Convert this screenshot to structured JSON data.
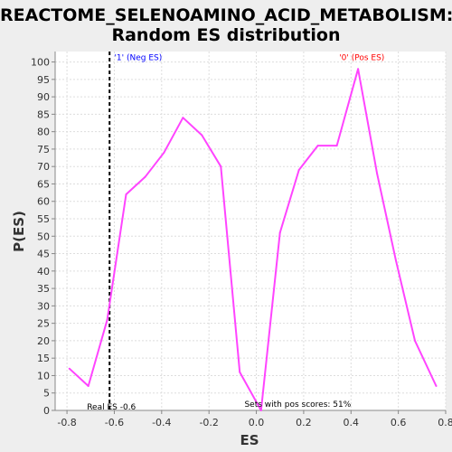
{
  "chart_data": {
    "type": "line",
    "title_lines": [
      "REACTOME_SELENOAMINO_ACID_METABOLISM:",
      "Random ES distribution"
    ],
    "xlabel": "ES",
    "ylabel": "P(ES)",
    "xlim": [
      -0.85,
      0.8
    ],
    "ylim": [
      0,
      103
    ],
    "x_ticks": [
      "-0.8",
      "-0.6",
      "-0.4",
      "-0.2",
      "0.0",
      "0.2",
      "0.4",
      "0.6",
      "0.8"
    ],
    "x_tick_values": [
      -0.8,
      -0.6,
      -0.4,
      -0.2,
      0.0,
      0.2,
      0.4,
      0.6,
      0.8
    ],
    "y_ticks": [
      "0",
      "5",
      "10",
      "15",
      "20",
      "25",
      "30",
      "35",
      "40",
      "45",
      "50",
      "55",
      "60",
      "65",
      "70",
      "75",
      "80",
      "85",
      "90",
      "95",
      "100"
    ],
    "y_tick_values": [
      0,
      5,
      10,
      15,
      20,
      25,
      30,
      35,
      40,
      45,
      50,
      55,
      60,
      65,
      70,
      75,
      80,
      85,
      90,
      95,
      100
    ],
    "grid": true,
    "series": [
      {
        "color": "#ff44ff",
        "x": [
          -0.79,
          -0.71,
          -0.63,
          -0.55,
          -0.47,
          -0.39,
          -0.31,
          -0.23,
          -0.15,
          -0.07,
          0.02,
          0.1,
          0.18,
          0.26,
          0.34,
          0.43,
          0.51,
          0.59,
          0.67,
          0.76
        ],
        "y": [
          12,
          7,
          26,
          62,
          67,
          74,
          84,
          79,
          70,
          11,
          0,
          51,
          69,
          76,
          76,
          98,
          68,
          43,
          20,
          7
        ]
      }
    ],
    "real_es": {
      "x": -0.62,
      "color": "#000000",
      "label": "Real ES -0.6"
    },
    "annotations": [
      {
        "text": "'1' (Neg ES)",
        "color": "#0000ff",
        "x": -0.6,
        "y": 100.5
      },
      {
        "text": "'0' (Pos ES)",
        "color": "#ff0000",
        "x": 0.35,
        "y": 100.5
      },
      {
        "text": "Sets with pos scores: 51%",
        "color": "#000000",
        "x": -0.05,
        "y": 1
      }
    ],
    "colors": {
      "plot_background": "#ffffff",
      "page_background": "#eeeeee",
      "grid": "#dddddd"
    }
  }
}
